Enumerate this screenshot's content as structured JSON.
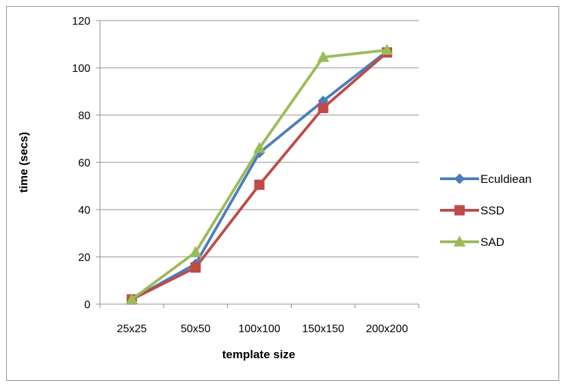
{
  "chart_data": {
    "type": "line",
    "categories": [
      "25x25",
      "50x50",
      "100x100",
      "150x150",
      "200x200"
    ],
    "series": [
      {
        "name": "Eculdiean",
        "values": [
          2,
          17,
          64,
          86,
          107
        ],
        "color": "#4a7ebb",
        "marker": "diamond"
      },
      {
        "name": "SSD",
        "values": [
          2,
          15.5,
          50.5,
          83,
          106.5
        ],
        "color": "#be4b48",
        "marker": "square"
      },
      {
        "name": "SAD",
        "values": [
          2,
          22,
          66,
          104.5,
          107.5
        ],
        "color": "#9bbb59",
        "marker": "triangle"
      }
    ],
    "title": "",
    "xlabel": "template size",
    "ylabel": "time (secs)",
    "ylim": [
      0,
      120
    ],
    "yticks": [
      0,
      20,
      40,
      60,
      80,
      100,
      120
    ],
    "grid": true,
    "legend_position": "right"
  }
}
